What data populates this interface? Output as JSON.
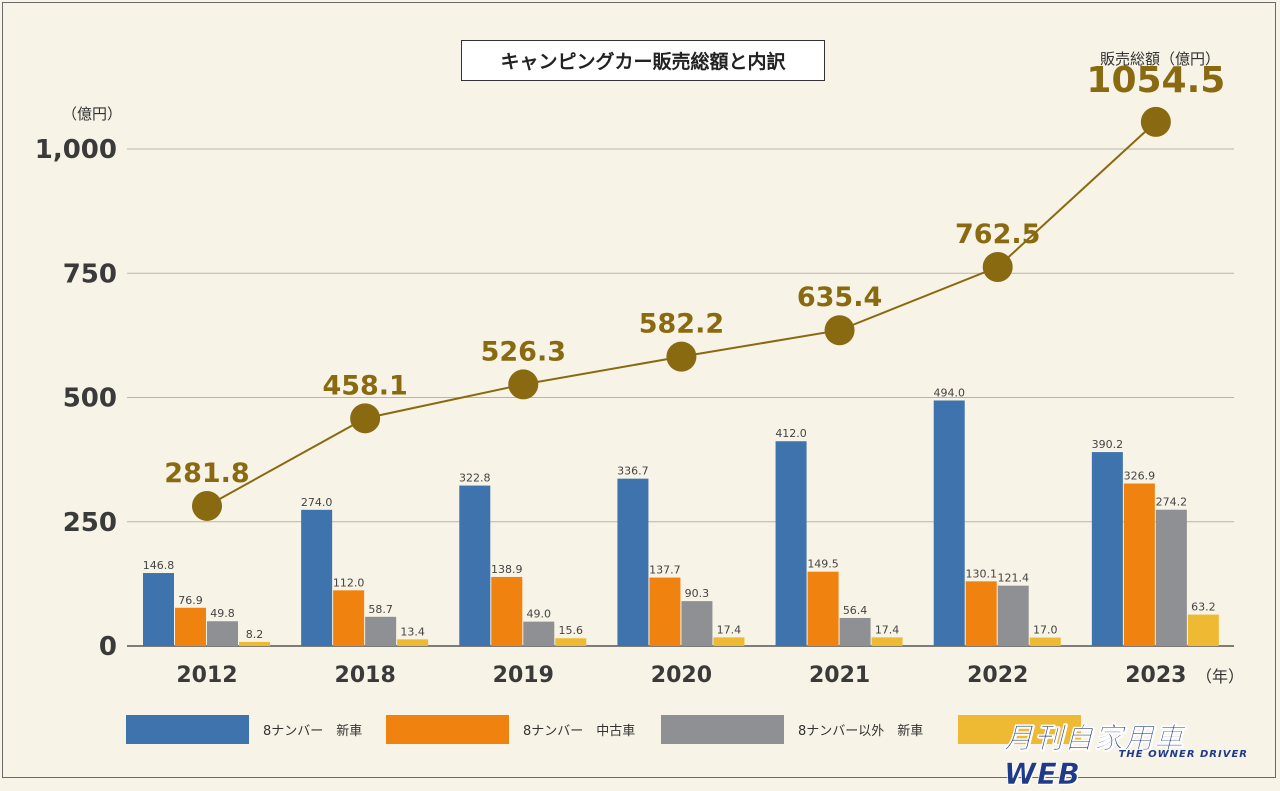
{
  "title": "キャンピングカー販売総額と内訳",
  "y_unit_label": "（億円）",
  "total_label": "販売総額（億円）",
  "year_suffix": "（年）",
  "logo": {
    "main": "月刊自家用車WEB",
    "sub": "THE OWNER DRIVER"
  },
  "chart_data": {
    "type": "bar",
    "title": "キャンピングカー販売総額と内訳",
    "ylabel": "（億円）",
    "xlabel": "（年）",
    "ylim": [
      0,
      1000
    ],
    "y_ticks": [
      0,
      250,
      500,
      750,
      1000
    ],
    "y_tick_labels": [
      "0",
      "250",
      "500",
      "750",
      "1,000"
    ],
    "grid": true,
    "legend_position": "bottom",
    "categories": [
      "2012",
      "2018",
      "2019",
      "2020",
      "2021",
      "2022",
      "2023"
    ],
    "series": [
      {
        "name": "8ナンバー　新車",
        "color": "#3f73ad",
        "values": [
          146.8,
          274.0,
          322.8,
          336.7,
          412.0,
          494.0,
          390.2
        ],
        "labels": [
          "146.8",
          "274.0",
          "322.8",
          "336.7",
          "412.0",
          "494.0",
          "390.2"
        ]
      },
      {
        "name": "8ナンバー　中古車",
        "color": "#f0820f",
        "values": [
          76.9,
          112.0,
          138.9,
          137.7,
          149.5,
          130.1,
          326.9
        ],
        "labels": [
          "76.9",
          "112.0",
          "138.9",
          "137.7",
          "149.5",
          "130.1",
          "326.9"
        ]
      },
      {
        "name": "8ナンバー以外　新車",
        "color": "#8f9094",
        "values": [
          49.8,
          58.7,
          49.0,
          90.3,
          56.4,
          121.4,
          274.2
        ],
        "labels": [
          "49.8",
          "58.7",
          "49.0",
          "90.3",
          "56.4",
          "121.4",
          "274.2"
        ]
      },
      {
        "name": "",
        "color": "#efba33",
        "values": [
          8.2,
          13.4,
          15.6,
          17.4,
          17.4,
          17.0,
          63.2
        ],
        "labels": [
          "8.2",
          "13.4",
          "15.6",
          "17.4",
          "17.4",
          "17.0",
          "63.2"
        ]
      }
    ],
    "total": {
      "name": "販売総額（億円）",
      "color": "#8a6a10",
      "values": [
        281.8,
        458.1,
        526.3,
        582.2,
        635.4,
        762.5,
        1054.5
      ],
      "labels": [
        "281.8",
        "458.1",
        "526.3",
        "582.2",
        "635.4",
        "762.5",
        "1054.5"
      ]
    }
  }
}
